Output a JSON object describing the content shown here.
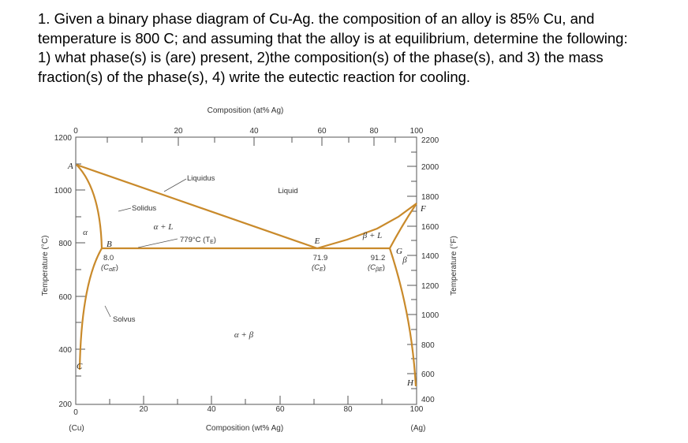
{
  "question": {
    "lines": [
      "1. Given a binary phase diagram of Cu-Ag. the composition of an alloy is 85% Cu, and",
      "temperature is 800 C; and assuming that the alloy is at equilibrium, determine the following:",
      "1) what phase(s) is (are) present, 2)the composition(s) of the phase(s), and 3) the mass",
      "fraction(s) of the phase(s), 4) write the eutectic reaction for cooling."
    ]
  },
  "diagram": {
    "top_axis_title": "Composition (at% Ag)",
    "top_ticks": [
      "0",
      "20",
      "40",
      "60",
      "80",
      "100"
    ],
    "bottom_axis_title": "Composition (wt% Ag)",
    "bottom_ticks": [
      "0",
      "20",
      "40",
      "60",
      "80",
      "100"
    ],
    "bottom_end_left": "(Cu)",
    "bottom_end_right": "(Ag)",
    "left_axis_title": "Temperature (°C)",
    "left_ticks": [
      "1200",
      "1000",
      "800",
      "600",
      "400",
      "200"
    ],
    "right_axis_title": "Temperature (°F)",
    "right_ticks": [
      "2200",
      "2000",
      "1800",
      "1600",
      "1400",
      "1200",
      "1000",
      "800",
      "600",
      "400"
    ],
    "regions": {
      "liquid": "Liquid",
      "alpha": "α",
      "beta": "β",
      "alpha_plus_liquid": "α + L",
      "beta_plus_liquid": "β + L",
      "alpha_plus_beta": "α + β"
    },
    "curve_labels": {
      "liquidus": "Liquidus",
      "solidus": "Solidus",
      "solvus": "Solvus"
    },
    "points": {
      "A": "A",
      "B": "B",
      "C": "C",
      "E": "E",
      "F": "F",
      "G": "G",
      "H": "H"
    },
    "eutectic_temp_label": "779°C (TE)",
    "eutectic_temp_main": "779°C (T",
    "eutectic_temp_sub": "E",
    "compositions": {
      "alpha_e_value": "8.0",
      "alpha_e_main": "(C",
      "alpha_e_sub": "αE",
      "eutectic_value": "71.9",
      "eutectic_main": "(C",
      "eutectic_sub": "E",
      "beta_e_value": "91.2",
      "beta_e_main": "(C",
      "beta_e_sub": "βE"
    },
    "colors": {
      "phase_lines": "#c98a2b",
      "axes": "#555555",
      "text": "#333333"
    }
  }
}
